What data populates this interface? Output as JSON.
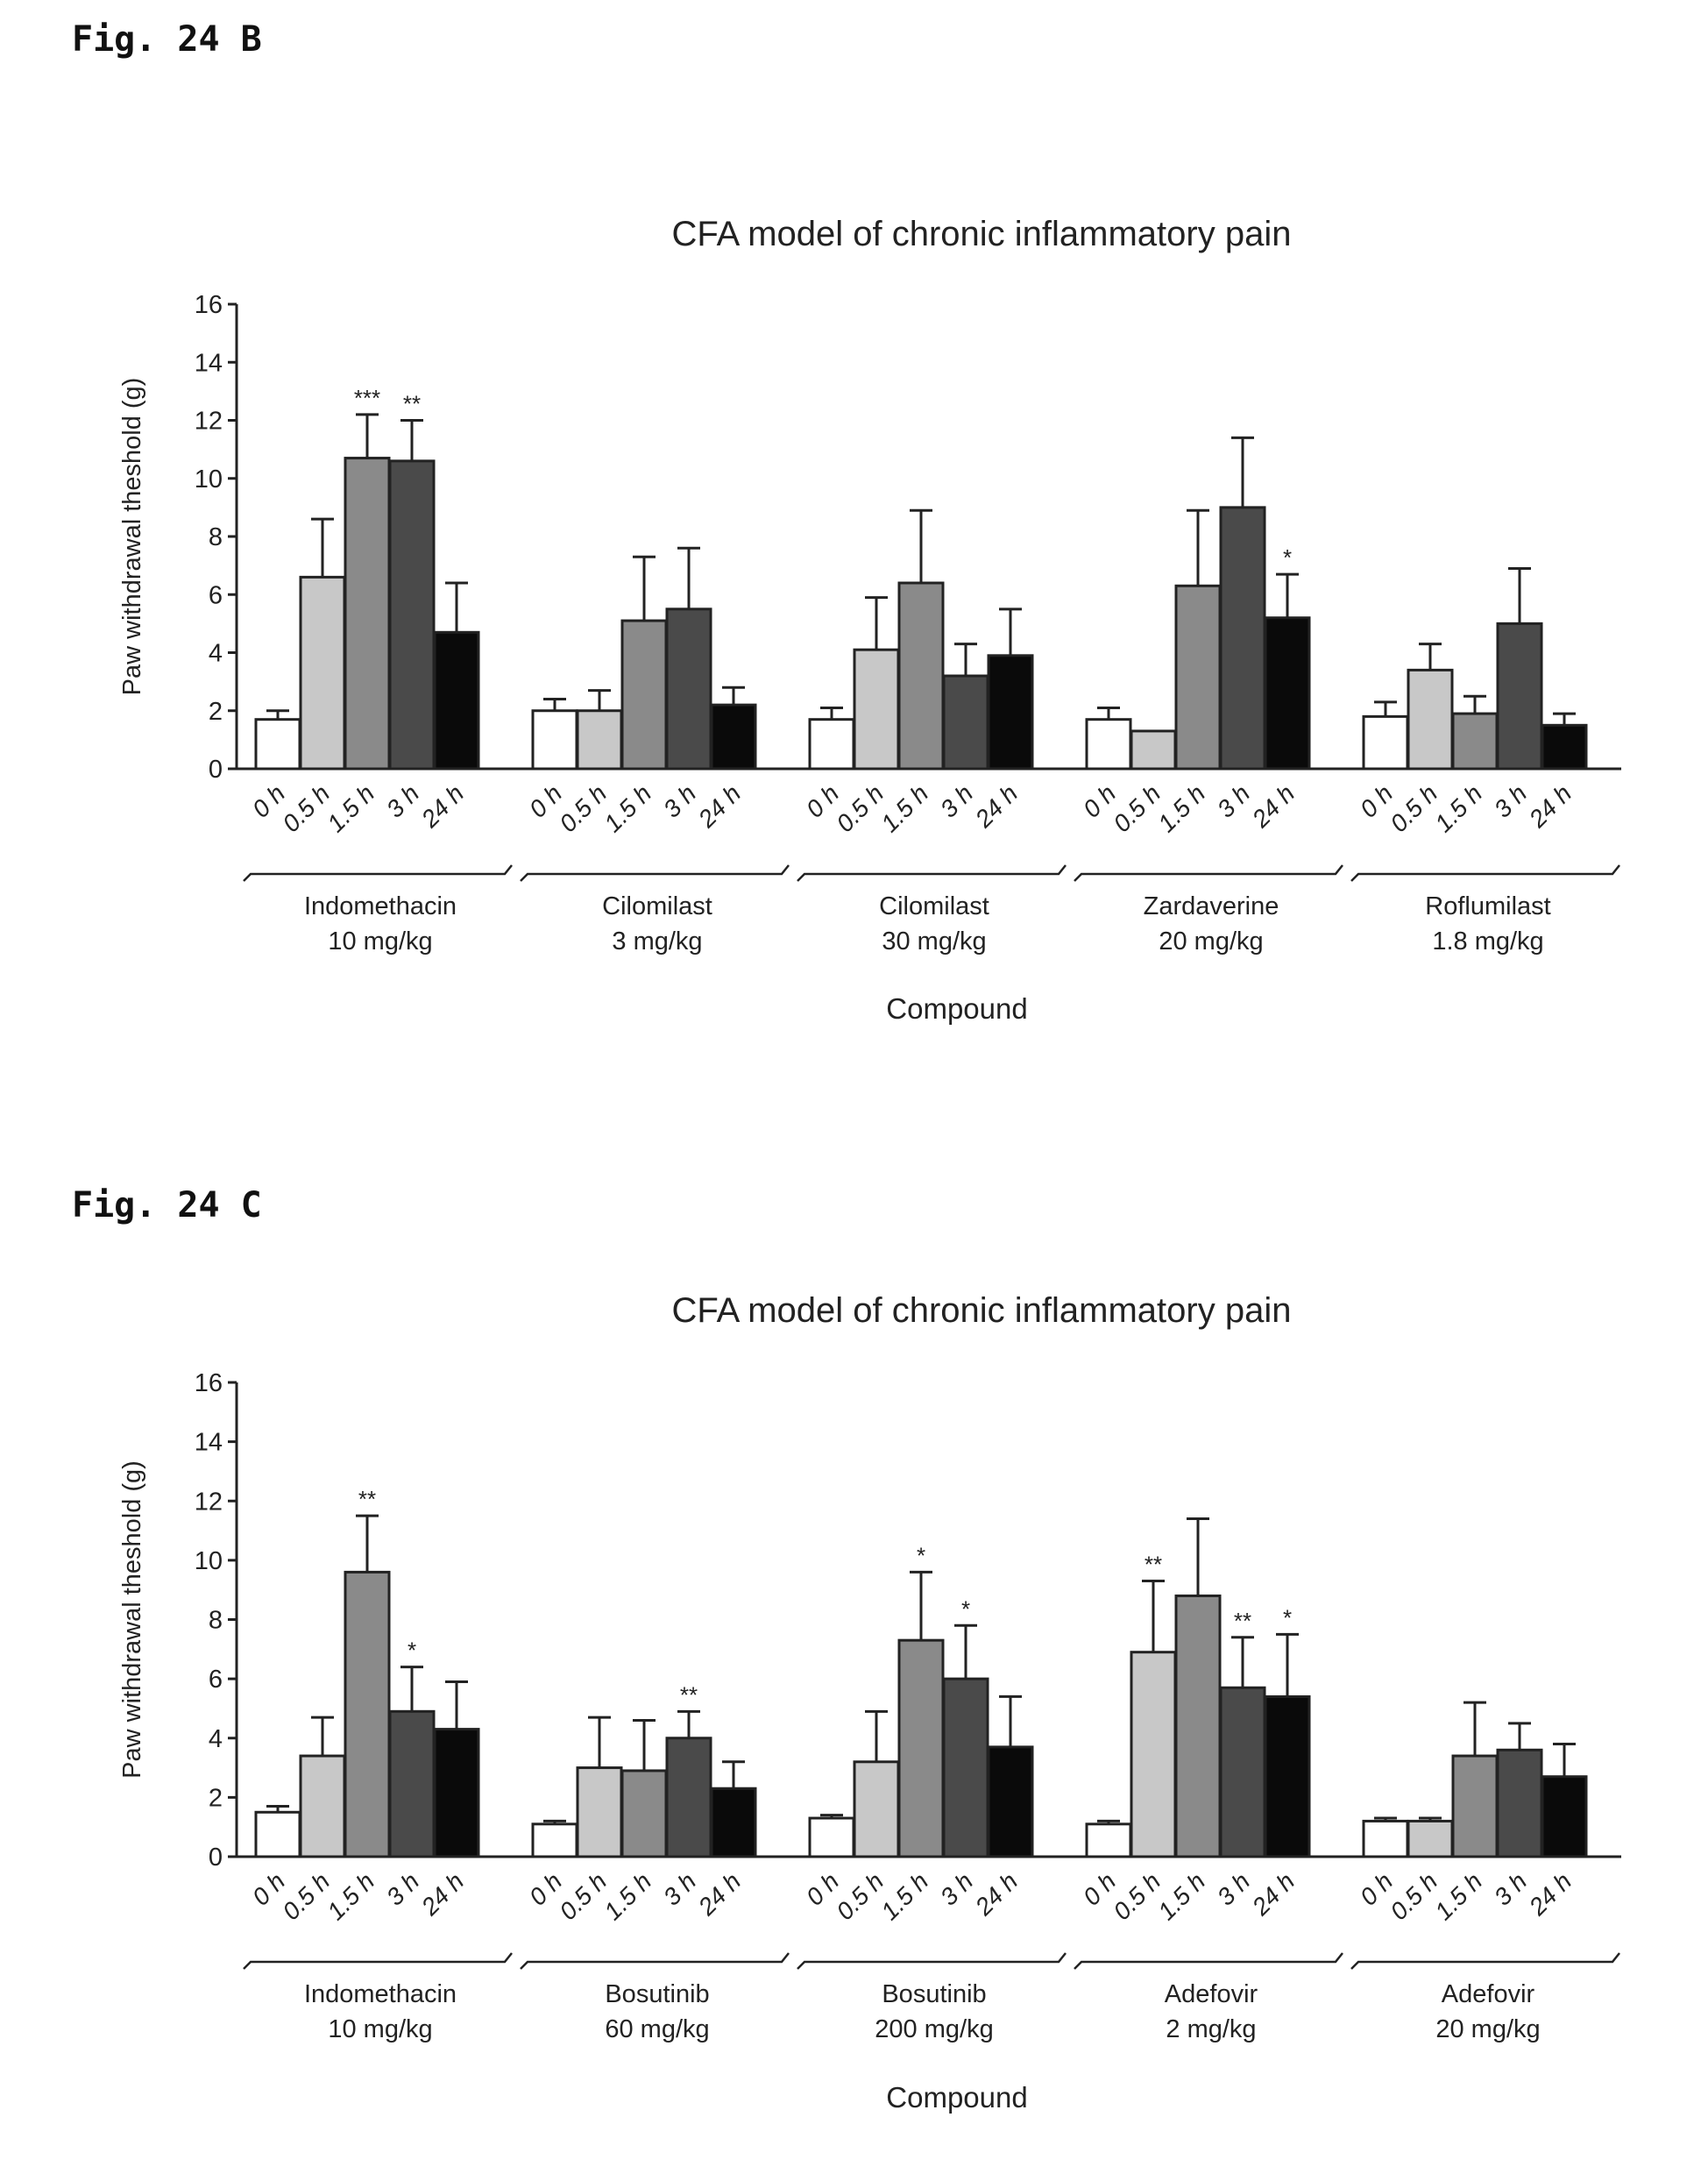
{
  "figures": [
    {
      "label": "Fig. 24 B"
    },
    {
      "label": "Fig. 24 C"
    }
  ],
  "chart_data": [
    {
      "type": "bar",
      "title": "CFA model of chronic inflammatory pain",
      "xlabel": "Compound",
      "ylabel": "Paw withdrawal theshold (g)",
      "ylim": [
        0,
        16
      ],
      "yticks": [
        0,
        2,
        4,
        6,
        8,
        10,
        12,
        14,
        16
      ],
      "timepoints": [
        "0 h",
        "0.5 h",
        "1.5 h",
        "3 h",
        "24 h"
      ],
      "bar_colors": [
        "#ffffff",
        "#c8c8c8",
        "#8a8a8a",
        "#4a4a4a",
        "#0a0a0a"
      ],
      "groups": [
        {
          "name": "Indomethacin",
          "dose": "10 mg/kg",
          "values": [
            1.7,
            6.6,
            10.7,
            10.6,
            4.7
          ],
          "errors": [
            0.3,
            2.0,
            1.5,
            1.4,
            1.7
          ],
          "stars": [
            "",
            "",
            "***",
            "**",
            ""
          ]
        },
        {
          "name": "Cilomilast",
          "dose": "3 mg/kg",
          "values": [
            2.0,
            2.0,
            5.1,
            5.5,
            2.2
          ],
          "errors": [
            0.4,
            0.7,
            2.2,
            2.1,
            0.6
          ],
          "stars": [
            "",
            "",
            "",
            "",
            ""
          ]
        },
        {
          "name": "Cilomilast",
          "dose": "30 mg/kg",
          "values": [
            1.7,
            4.1,
            6.4,
            3.2,
            3.9
          ],
          "errors": [
            0.4,
            1.8,
            2.5,
            1.1,
            1.6
          ],
          "stars": [
            "",
            "",
            "",
            "",
            ""
          ]
        },
        {
          "name": "Zardaverine",
          "dose": "20 mg/kg",
          "values": [
            1.7,
            1.3,
            6.3,
            9.0,
            5.2
          ],
          "errors": [
            0.4,
            0.0,
            2.6,
            2.4,
            1.5
          ],
          "stars": [
            "",
            "",
            "",
            "",
            "*"
          ]
        },
        {
          "name": "Roflumilast",
          "dose": "1.8 mg/kg",
          "values": [
            1.8,
            3.4,
            1.9,
            5.0,
            1.5
          ],
          "errors": [
            0.5,
            0.9,
            0.6,
            1.9,
            0.4
          ],
          "stars": [
            "",
            "",
            "",
            "",
            ""
          ]
        }
      ]
    },
    {
      "type": "bar",
      "title": "CFA model of chronic inflammatory pain",
      "xlabel": "Compound",
      "ylabel": "Paw withdrawal theshold (g)",
      "ylim": [
        0,
        16
      ],
      "yticks": [
        0,
        2,
        4,
        6,
        8,
        10,
        12,
        14,
        16
      ],
      "timepoints": [
        "0 h",
        "0.5 h",
        "1.5 h",
        "3 h",
        "24 h"
      ],
      "bar_colors": [
        "#ffffff",
        "#c8c8c8",
        "#8a8a8a",
        "#4a4a4a",
        "#0a0a0a"
      ],
      "groups": [
        {
          "name": "Indomethacin",
          "dose": "10 mg/kg",
          "values": [
            1.5,
            3.4,
            9.6,
            4.9,
            4.3
          ],
          "errors": [
            0.2,
            1.3,
            1.9,
            1.5,
            1.6
          ],
          "stars": [
            "",
            "",
            "**",
            "*",
            ""
          ]
        },
        {
          "name": "Bosutinib",
          "dose": "60 mg/kg",
          "values": [
            1.1,
            3.0,
            2.9,
            4.0,
            2.3
          ],
          "errors": [
            0.1,
            1.7,
            1.7,
            0.9,
            0.9
          ],
          "stars": [
            "",
            "",
            "",
            "**",
            ""
          ]
        },
        {
          "name": "Bosutinib",
          "dose": "200 mg/kg",
          "values": [
            1.3,
            3.2,
            7.3,
            6.0,
            3.7
          ],
          "errors": [
            0.1,
            1.7,
            2.3,
            1.8,
            1.7
          ],
          "stars": [
            "",
            "",
            "*",
            "*",
            ""
          ]
        },
        {
          "name": "Adefovir",
          "dose": "2 mg/kg",
          "values": [
            1.1,
            6.9,
            8.8,
            5.7,
            5.4
          ],
          "errors": [
            0.1,
            2.4,
            2.6,
            1.7,
            2.1
          ],
          "stars": [
            "",
            "**",
            "",
            "**",
            "*"
          ]
        },
        {
          "name": "Adefovir",
          "dose": "20 mg/kg",
          "values": [
            1.2,
            1.2,
            3.4,
            3.6,
            2.7
          ],
          "errors": [
            0.1,
            0.1,
            1.8,
            0.9,
            1.1
          ],
          "stars": [
            "",
            "",
            "",
            "",
            ""
          ]
        }
      ]
    }
  ]
}
